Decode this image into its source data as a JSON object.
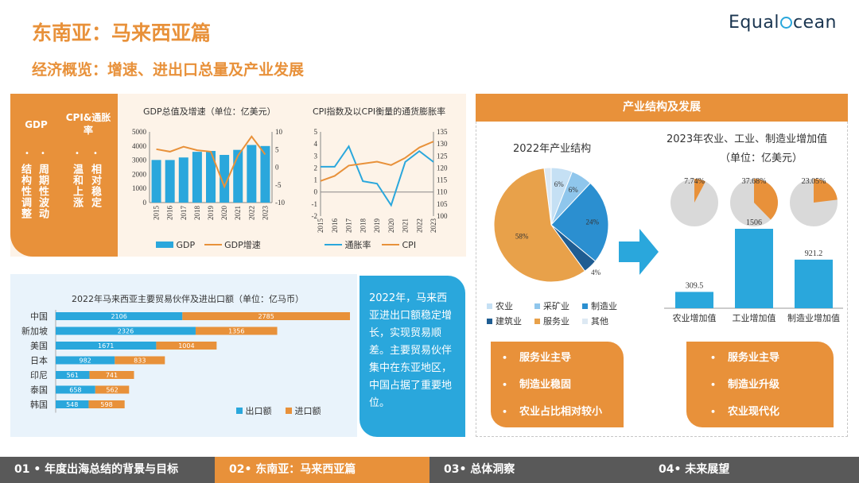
{
  "header": {
    "title": "东南亚：马来西亚篇",
    "subtitle": "经济概览：增速、进出口总量及产业发展",
    "logo_left": "Equal",
    "logo_right": "cean"
  },
  "side": {
    "col1_head": "GDP",
    "col2_head": "CPI&通胀率",
    "col1_items": [
      "结构性调整",
      "周期性波动"
    ],
    "col2_items": [
      "温和上涨",
      "相对稳定"
    ]
  },
  "gdp_chart": {
    "title": "GDP总值及增速（单位：亿美元）",
    "legend": [
      "GDP",
      "GDP增速"
    ]
  },
  "cpi_chart": {
    "title": "CPI指数及以CPI衡量的通货膨胀率",
    "legend": [
      "通胀率",
      "CPI"
    ]
  },
  "trade": {
    "title": "2022年马来西亚主要贸易伙伴及进出口额（单位：亿马币）",
    "legend": [
      "出口额",
      "进口额"
    ],
    "text": "2022年，马来西亚进出口额稳定增长，实现贸易顺差。主要贸易伙伴集中在东亚地区，中国占据了重要地位。"
  },
  "industry": {
    "header": "产业结构及发展",
    "pie_title": "2022年产业结构",
    "legend": [
      "农业",
      "采矿业",
      "制造业",
      "建筑业",
      "服务业",
      "其他"
    ],
    "right_title": "2023年农业、工业、制造业增加值",
    "right_unit": "（单位：亿美元）",
    "left_box": [
      "服务业主导",
      "制造业稳固",
      "农业占比相对较小"
    ],
    "right_box": [
      "服务业主导",
      "制造业升级",
      "农业现代化"
    ]
  },
  "footer": {
    "items": [
      "01 • 年度出海总结的背景与目标",
      "02• 东南亚：马来西亚篇",
      "03• 总体洞察",
      "04• 未来展望"
    ]
  },
  "colors": {
    "orange": "#e8913a",
    "blue": "#2aa7dc",
    "dark_blue": "#1f5d92",
    "light_blue": "#a9d3ef",
    "grey": "#d9d9d9"
  },
  "chart_data": [
    {
      "type": "bar",
      "title": "GDP总值及增速（单位：亿美元）",
      "categories": [
        "2015",
        "2016",
        "2017",
        "2018",
        "2019",
        "2020",
        "2021",
        "2022",
        "2023"
      ],
      "series": [
        {
          "name": "GDP",
          "values": [
            3013,
            3010,
            3190,
            3589,
            3651,
            3371,
            3727,
            4073,
            4000
          ]
        },
        {
          "name": "GDP增速",
          "values": [
            5.1,
            4.4,
            5.8,
            4.8,
            4.4,
            -5.5,
            3.3,
            8.7,
            3.6
          ]
        }
      ],
      "ylim": [
        0,
        5000
      ],
      "y2lim": [
        -10,
        10
      ],
      "yticks": [
        "0",
        "1000",
        "2000",
        "3000",
        "4000",
        "5000"
      ],
      "y2ticks": [
        "-10",
        "-5",
        "0",
        "5",
        "10"
      ]
    },
    {
      "type": "line",
      "title": "CPI指数及以CPI衡量的通货膨胀率",
      "categories": [
        "2015",
        "2016",
        "2017",
        "2018",
        "2019",
        "2020",
        "2021",
        "2022",
        "2023"
      ],
      "series": [
        {
          "name": "通胀率",
          "values": [
            2.1,
            2.1,
            3.8,
            0.9,
            0.7,
            -1.1,
            2.5,
            3.4,
            2.5
          ]
        },
        {
          "name": "CPI",
          "values": [
            114.6,
            116.7,
            121.0,
            121.8,
            122.6,
            121.2,
            124.2,
            128.5,
            131.0
          ]
        }
      ],
      "ylim": [
        -2,
        5
      ],
      "y2lim": [
        100,
        135
      ],
      "yticks": [
        "-2",
        "-1",
        "0",
        "1",
        "2",
        "3",
        "4",
        "5"
      ],
      "y2ticks": [
        "100",
        "105",
        "110",
        "115",
        "120",
        "125",
        "130",
        "135"
      ]
    },
    {
      "type": "bar",
      "title": "2022年马来西亚主要贸易伙伴及进出口额（单位：亿马币）",
      "categories": [
        "中国",
        "新加坡",
        "美国",
        "日本",
        "印尼",
        "泰国",
        "韩国"
      ],
      "series": [
        {
          "name": "出口额",
          "values": [
            2106,
            2326,
            1671,
            982,
            561,
            658,
            548
          ]
        },
        {
          "name": "进口额",
          "values": [
            2785,
            1356,
            1004,
            833,
            741,
            562,
            598
          ]
        }
      ]
    },
    {
      "type": "pie",
      "title": "2022年产业结构",
      "categories": [
        "农业",
        "采矿业",
        "制造业",
        "建筑业",
        "服务业",
        "其他"
      ],
      "values": [
        6,
        6,
        24,
        4,
        58,
        2
      ],
      "labels": [
        "6%",
        "6%",
        "24%",
        "4%",
        "58%",
        "2%"
      ]
    },
    {
      "type": "bar",
      "title": "2023年农业、工业、制造业增加值",
      "categories": [
        "农业增加值",
        "工业增加值",
        "制造业增加值"
      ],
      "values": [
        309.5,
        1506,
        921.2
      ],
      "share_labels": [
        "7.74%",
        "37.68%",
        "23.05%"
      ],
      "shares": [
        7.74,
        37.68,
        23.05
      ]
    }
  ]
}
